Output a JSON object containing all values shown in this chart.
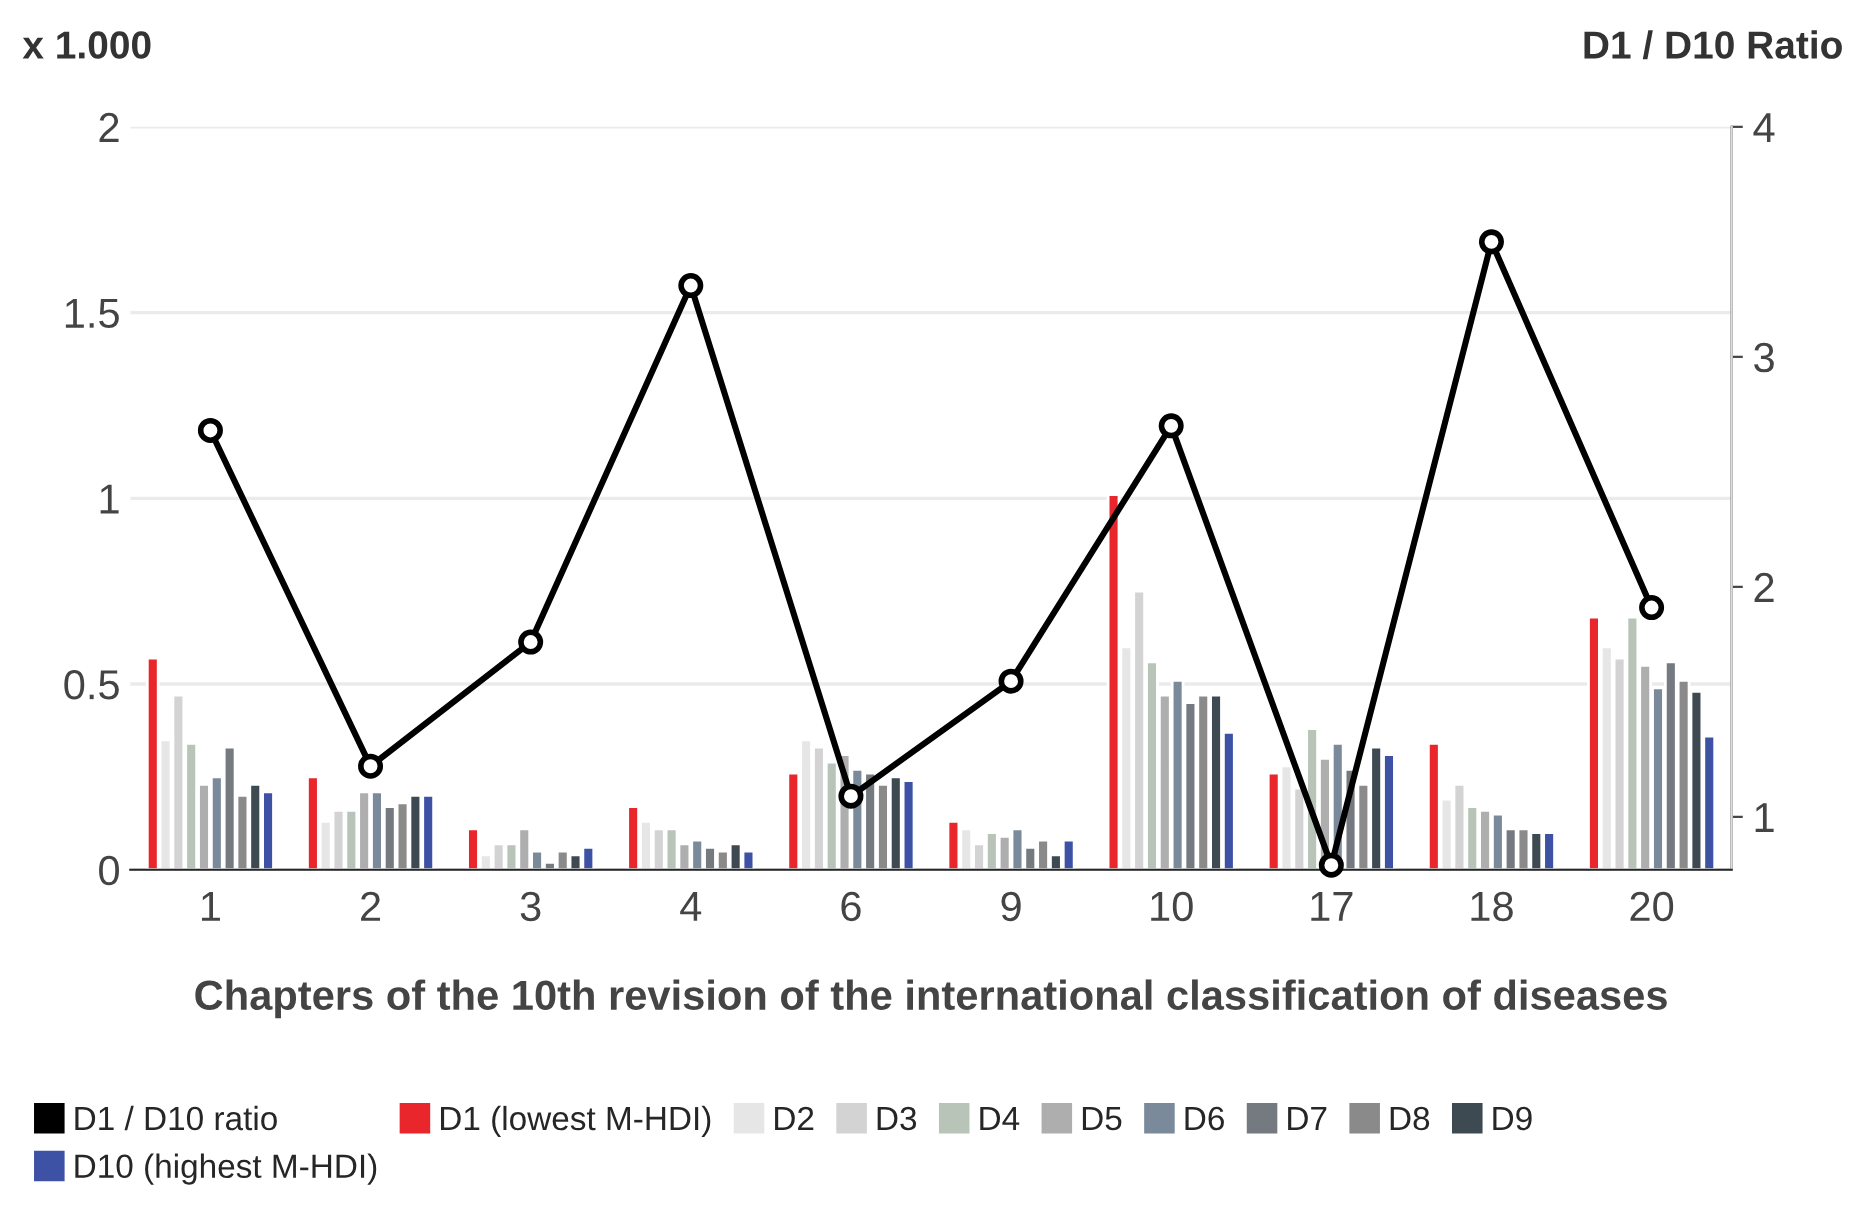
{
  "chart_data": {
    "type": "bar",
    "xlabel": "Chapters of the 10th revision of the international classification of diseases",
    "ylabel": "x 1.000",
    "y2label": "D1 / D10 Ratio",
    "categories": [
      "1",
      "2",
      "3",
      "4",
      "6",
      "9",
      "10",
      "17",
      "18",
      "20"
    ],
    "series": [
      {
        "name": "D1 / D10 ratio",
        "type": "line",
        "axis": "y2",
        "color": "#000000",
        "marker": "circle",
        "line_style": "solid",
        "values": [
          2.68,
          1.22,
          1.76,
          3.31,
          1.09,
          1.59,
          2.7,
          0.79,
          3.5,
          1.91
        ]
      },
      {
        "name": "D1 (lowest M-HDI)",
        "color": "#e8262b",
        "values": [
          0.57,
          0.25,
          0.11,
          0.17,
          0.26,
          0.13,
          1.01,
          0.26,
          0.34,
          0.68
        ]
      },
      {
        "name": "D2",
        "color": "#e6e6e6",
        "values": [
          0.35,
          0.13,
          0.04,
          0.13,
          0.35,
          0.11,
          0.6,
          0.28,
          0.19,
          0.6
        ]
      },
      {
        "name": "D3",
        "color": "#d3d3d3",
        "values": [
          0.47,
          0.16,
          0.07,
          0.11,
          0.33,
          0.07,
          0.75,
          0.22,
          0.23,
          0.57
        ]
      },
      {
        "name": "D4",
        "color": "#b9c4b8",
        "values": [
          0.34,
          0.16,
          0.07,
          0.11,
          0.29,
          0.1,
          0.56,
          0.38,
          0.17,
          0.68
        ]
      },
      {
        "name": "D5",
        "color": "#aeaeae",
        "values": [
          0.23,
          0.21,
          0.11,
          0.07,
          0.31,
          0.09,
          0.47,
          0.3,
          0.16,
          0.55
        ]
      },
      {
        "name": "D6",
        "color": "#7a8a9a",
        "values": [
          0.25,
          0.21,
          0.05,
          0.08,
          0.27,
          0.11,
          0.51,
          0.34,
          0.15,
          0.49
        ]
      },
      {
        "name": "D7",
        "color": "#757a80",
        "values": [
          0.33,
          0.17,
          0.02,
          0.06,
          0.26,
          0.06,
          0.45,
          0.27,
          0.11,
          0.56
        ]
      },
      {
        "name": "D8",
        "color": "#8a8a8a",
        "values": [
          0.2,
          0.18,
          0.05,
          0.05,
          0.23,
          0.08,
          0.47,
          0.23,
          0.11,
          0.51
        ]
      },
      {
        "name": "D9",
        "color": "#3e4a52",
        "values": [
          0.23,
          0.2,
          0.04,
          0.07,
          0.25,
          0.04,
          0.47,
          0.33,
          0.1,
          0.48
        ]
      },
      {
        "name": "D10 (highest M-HDI)",
        "color": "#3d52a4",
        "values": [
          0.21,
          0.2,
          0.06,
          0.05,
          0.24,
          0.08,
          0.37,
          0.31,
          0.1,
          0.36
        ]
      }
    ],
    "ylim": [
      0,
      2
    ],
    "yticks": [
      0,
      0.5,
      1,
      1.5,
      2
    ],
    "y2lim": [
      0.77,
      4
    ],
    "y2ticks": [
      1,
      2,
      3,
      4
    ],
    "grid": "y",
    "legend": "bottom"
  }
}
